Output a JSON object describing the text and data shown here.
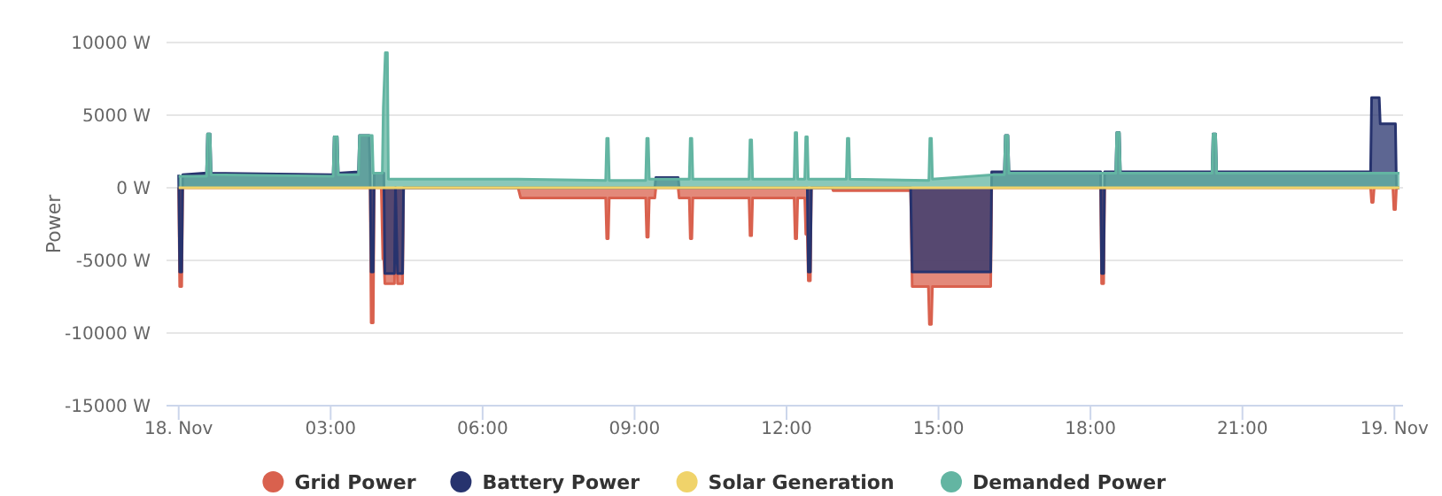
{
  "chart_data": {
    "type": "area",
    "ylabel": "Power",
    "xlim": [
      -0.24,
      24.17
    ],
    "ylim": [
      -15000,
      10000
    ],
    "xticks": [
      {
        "value": 0,
        "label": "18. Nov"
      },
      {
        "value": 3,
        "label": "03:00"
      },
      {
        "value": 6,
        "label": "06:00"
      },
      {
        "value": 9,
        "label": "09:00"
      },
      {
        "value": 12,
        "label": "12:00"
      },
      {
        "value": 15,
        "label": "15:00"
      },
      {
        "value": 18,
        "label": "18:00"
      },
      {
        "value": 21,
        "label": "21:00"
      },
      {
        "value": 24,
        "label": "19. Nov"
      }
    ],
    "yticks": [
      {
        "value": -15000,
        "label": "-15000 W"
      },
      {
        "value": -10000,
        "label": "-10000 W"
      },
      {
        "value": -5000,
        "label": "-5000 W"
      },
      {
        "value": 0,
        "label": "0 W"
      },
      {
        "value": 5000,
        "label": "5000 W"
      },
      {
        "value": 10000,
        "label": "10000 W"
      }
    ],
    "grid": "y",
    "legend": "bottom",
    "marker": "none",
    "series": [
      {
        "name": "Grid Power",
        "color": "#d9614e",
        "x": [
          0,
          0.02,
          0.06,
          0.08,
          3.78,
          3.8,
          3.84,
          3.86,
          4.0,
          4.03,
          4.05,
          4.07,
          4.26,
          4.28,
          4.32,
          4.42,
          4.44,
          6.7,
          6.75,
          8.43,
          8.45,
          8.48,
          8.5,
          9.22,
          9.24,
          9.27,
          9.29,
          9.4,
          9.42,
          9.86,
          9.88,
          10.08,
          10.1,
          10.13,
          10.15,
          11.26,
          11.28,
          11.31,
          11.33,
          12.15,
          12.17,
          12.2,
          12.22,
          12.36,
          12.38,
          12.41,
          12.43,
          12.47,
          12.49,
          12.9,
          12.92,
          14.45,
          14.48,
          14.8,
          14.82,
          14.86,
          14.88,
          16.03,
          16.05,
          18.2,
          18.22,
          18.26,
          18.28,
          23.53,
          23.55,
          23.58,
          23.6,
          23.97,
          23.99,
          24.02,
          24.04,
          24.1
        ],
        "values": [
          0,
          -6800,
          -6800,
          0,
          0,
          -9300,
          -9300,
          0,
          0,
          -4900,
          -4900,
          -6600,
          -6600,
          0,
          -6600,
          -6600,
          0,
          0,
          -700,
          -700,
          -3500,
          -3500,
          -700,
          -700,
          -3400,
          -3400,
          -700,
          -700,
          0,
          0,
          -700,
          -700,
          -3500,
          -3500,
          -700,
          -700,
          -3300,
          -3300,
          -700,
          -700,
          -3500,
          -3500,
          -700,
          -700,
          -3200,
          -3200,
          -6400,
          -6400,
          0,
          0,
          -200,
          -200,
          -6800,
          -6800,
          -9400,
          -9400,
          -6800,
          -6800,
          0,
          0,
          -6600,
          -6600,
          0,
          0,
          -1000,
          -1000,
          0,
          0,
          -1500,
          -1500,
          0,
          0
        ]
      },
      {
        "name": "Battery Power",
        "color": "#27336e",
        "x": [
          0,
          0.02,
          0.06,
          0.08,
          0.5,
          0.55,
          0.57,
          0.62,
          0.64,
          3.0,
          3.05,
          3.07,
          3.13,
          3.15,
          3.55,
          3.57,
          3.76,
          3.78,
          3.8,
          3.84,
          3.86,
          4.0,
          4.05,
          4.07,
          4.26,
          4.28,
          4.32,
          4.42,
          4.44,
          6.7,
          6.75,
          9.4,
          9.42,
          9.86,
          9.88,
          12.41,
          12.43,
          12.47,
          12.49,
          14.45,
          14.48,
          16.03,
          16.05,
          16.3,
          16.32,
          16.37,
          16.39,
          18.2,
          18.22,
          18.26,
          18.28,
          18.5,
          18.52,
          18.57,
          18.59,
          20.4,
          20.42,
          20.47,
          20.49,
          23.53,
          23.55,
          23.7,
          23.72,
          24.02,
          24.04,
          24.1
        ],
        "values": [
          900,
          -5800,
          -5800,
          900,
          1000,
          1000,
          3700,
          3700,
          1000,
          900,
          900,
          3500,
          3500,
          1000,
          1100,
          3600,
          3600,
          1000,
          -5800,
          -5800,
          1000,
          1000,
          1000,
          -5900,
          -5900,
          0,
          -5900,
          -5900,
          0,
          0,
          0,
          0,
          700,
          700,
          0,
          0,
          -5800,
          -5800,
          0,
          0,
          -5800,
          -5800,
          1100,
          1100,
          3600,
          3600,
          1100,
          1100,
          -5900,
          -5900,
          1100,
          1100,
          3800,
          3800,
          1100,
          1100,
          3700,
          3700,
          1100,
          1100,
          6200,
          6200,
          4400,
          4400,
          0,
          0
        ]
      },
      {
        "name": "Solar Generation",
        "color": "#f0d36a",
        "type": "line",
        "x": [
          0,
          2,
          4,
          6,
          8,
          10,
          12,
          14,
          16,
          18,
          20,
          22,
          24.1
        ],
        "values": [
          0,
          0,
          0,
          0,
          0,
          0,
          0,
          0,
          0,
          0,
          0,
          0,
          0
        ]
      },
      {
        "name": "Demanded Power",
        "color": "#63b5a2",
        "x": [
          0,
          0.55,
          0.57,
          0.62,
          0.64,
          3.05,
          3.07,
          3.13,
          3.15,
          3.55,
          3.57,
          3.82,
          3.84,
          4.02,
          4.04,
          4.08,
          4.12,
          4.14,
          6.7,
          8.43,
          8.45,
          8.48,
          8.5,
          9.22,
          9.24,
          9.27,
          9.29,
          10.08,
          10.1,
          10.13,
          10.15,
          11.26,
          11.28,
          11.31,
          11.33,
          12.15,
          12.17,
          12.2,
          12.22,
          12.36,
          12.38,
          12.41,
          12.43,
          13.18,
          13.2,
          13.23,
          13.25,
          14.81,
          14.83,
          14.86,
          14.88,
          16.1,
          16.3,
          16.32,
          16.37,
          16.39,
          18.5,
          18.52,
          18.57,
          18.59,
          20.4,
          20.42,
          20.47,
          20.49,
          24.1
        ],
        "values": [
          800,
          800,
          3700,
          3700,
          900,
          800,
          3500,
          3500,
          900,
          900,
          3600,
          3600,
          1000,
          1000,
          5500,
          9300,
          9300,
          600,
          600,
          500,
          3400,
          3400,
          500,
          500,
          3400,
          3400,
          600,
          600,
          3400,
          3400,
          600,
          600,
          3300,
          3300,
          600,
          600,
          3800,
          3800,
          600,
          600,
          3500,
          3500,
          600,
          600,
          3400,
          3400,
          600,
          500,
          3400,
          3400,
          600,
          900,
          900,
          3600,
          3600,
          1000,
          1000,
          3800,
          3800,
          1000,
          1000,
          3700,
          3700,
          1000,
          1000
        ]
      }
    ]
  }
}
